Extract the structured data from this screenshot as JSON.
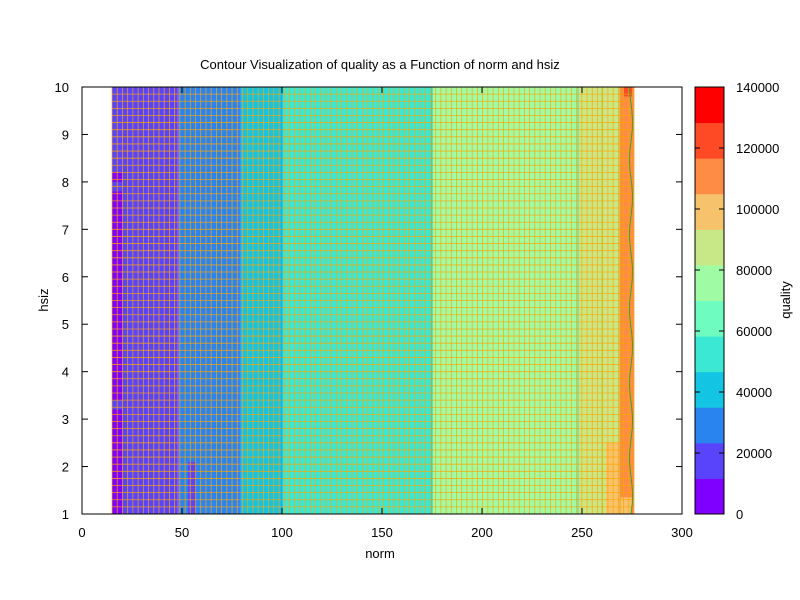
{
  "chart_data": {
    "type": "heatmap",
    "title": "Contour Visualization of quality as a Function of norm and hsiz",
    "xlabel": "norm",
    "ylabel": "hsiz",
    "colorbar_label": "quality",
    "xlim": [
      0,
      300
    ],
    "ylim": [
      1,
      10
    ],
    "xticks": [
      0,
      50,
      100,
      150,
      200,
      250,
      300
    ],
    "yticks": [
      1,
      2,
      3,
      4,
      5,
      6,
      7,
      8,
      9,
      10
    ],
    "colorbar_range": [
      0,
      140000
    ],
    "colorbar_ticks": [
      0,
      20000,
      40000,
      60000,
      80000,
      100000,
      120000,
      140000
    ],
    "colorbar_tick_labels": [
      "0",
      "20000",
      "40000",
      "60000",
      "80000",
      "100000",
      "120000",
      "140000"
    ],
    "colorbar_levels": [
      "#7f00ff",
      "#5a44fb",
      "#2a84ef",
      "#13c4e3",
      "#3ae8d3",
      "#6efcc0",
      "#9ffca5",
      "#c8e888",
      "#f6c36c",
      "#ff8c45",
      "#ff4a26",
      "#ff0000"
    ],
    "data_extent": {
      "norm": [
        15,
        276
      ],
      "hsiz": [
        1,
        10
      ]
    },
    "norm_bands": [
      {
        "norm": [
          15,
          48
        ],
        "quality": 15000
      },
      {
        "norm": [
          48,
          79
        ],
        "quality": 27000
      },
      {
        "norm": [
          79,
          100
        ],
        "quality": 45000
      },
      {
        "norm": [
          100,
          175
        ],
        "quality": 58000
      },
      {
        "norm": [
          175,
          248
        ],
        "quality": 70000
      },
      {
        "norm": [
          248,
          260
        ],
        "quality": 82000
      },
      {
        "norm": [
          260,
          269
        ],
        "quality": 90000
      },
      {
        "norm": [
          269,
          276
        ],
        "quality": 108000
      }
    ],
    "patches": [
      {
        "norm": [
          15,
          20
        ],
        "hsiz": [
          3.4,
          7.8
        ],
        "quality": 5000
      },
      {
        "norm": [
          15,
          20
        ],
        "hsiz": [
          8.0,
          8.2
        ],
        "quality": 5000
      },
      {
        "norm": [
          15,
          20
        ],
        "hsiz": [
          1.0,
          3.2
        ],
        "quality": 5000
      },
      {
        "norm": [
          53,
          57
        ],
        "hsiz": [
          1.0,
          2.1
        ],
        "quality": 15000
      },
      {
        "norm": [
          262,
          269
        ],
        "hsiz": [
          1.0,
          2.5
        ],
        "quality": 98000
      },
      {
        "norm": [
          269,
          275
        ],
        "hsiz": [
          1.0,
          1.35
        ],
        "quality": 98000
      },
      {
        "norm": [
          271,
          275
        ],
        "hsiz": [
          9.8,
          10.0
        ],
        "quality": 125000
      }
    ],
    "mesh_color": "#ffa500"
  }
}
